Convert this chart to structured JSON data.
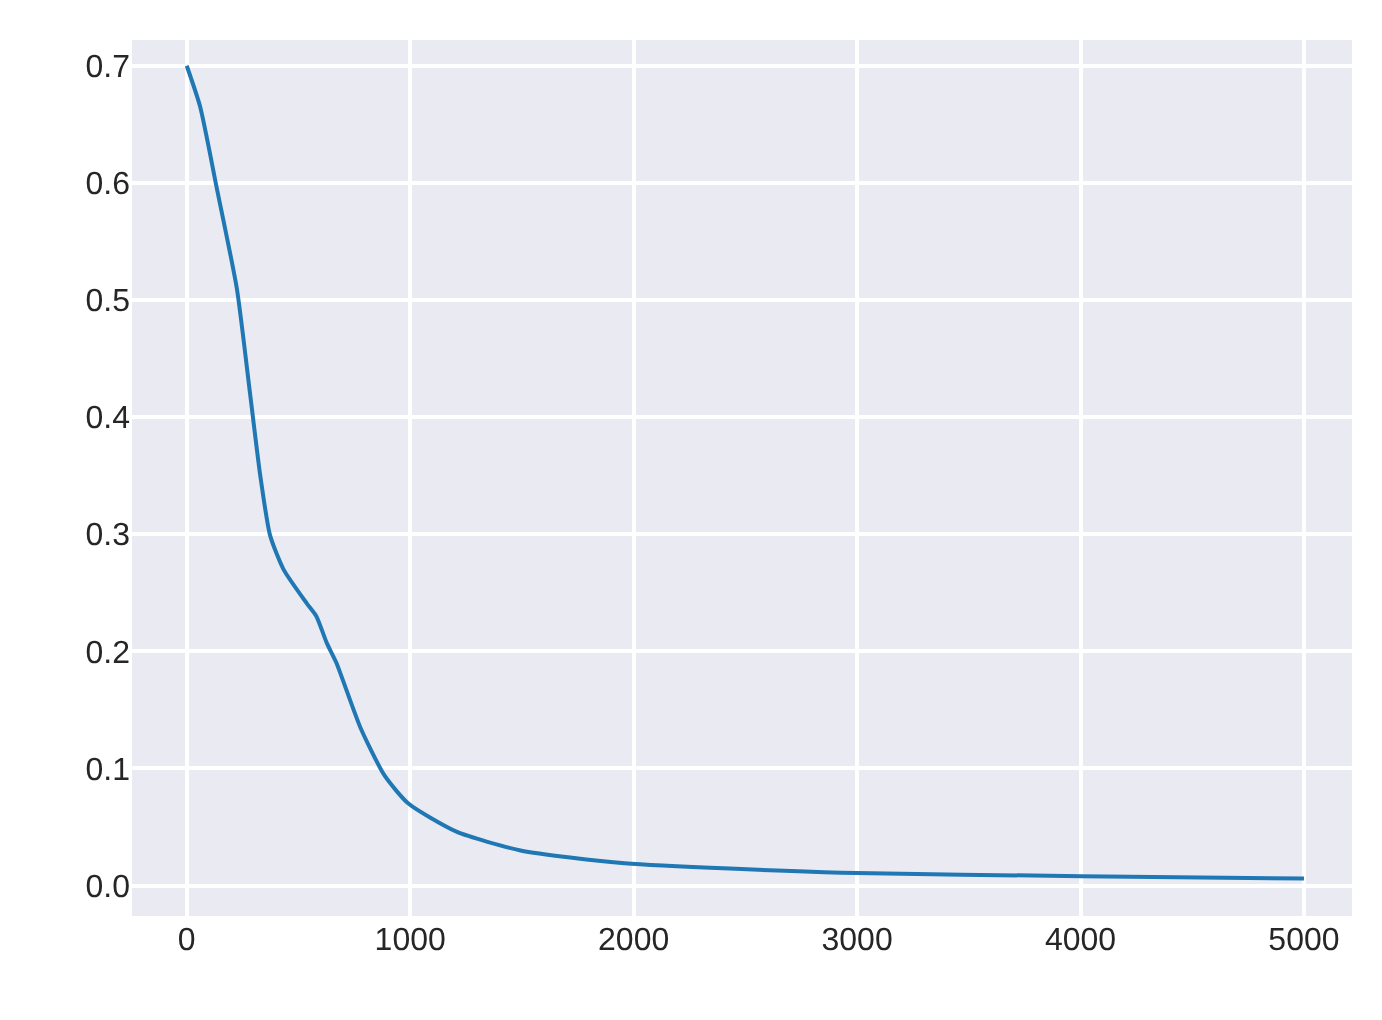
{
  "chart_data": {
    "type": "line",
    "x": [
      0,
      60,
      134,
      224,
      284,
      329,
      373,
      433,
      537,
      580,
      627,
      670,
      777,
      885,
      992,
      1207,
      1494,
      1960,
      2930,
      4006,
      5000
    ],
    "series": [
      {
        "color": "#1f77b4",
        "values": [
          0.7,
          0.665,
          0.596,
          0.51,
          0.419,
          0.35,
          0.299,
          0.27,
          0.241,
          0.23,
          0.207,
          0.19,
          0.135,
          0.094,
          0.07,
          0.046,
          0.03,
          0.019,
          0.011,
          0.008,
          0.006
        ]
      }
    ],
    "xlim": [
      -245,
      5215
    ],
    "ylim": [
      -0.026,
      0.722
    ],
    "xticks": [
      0,
      1000,
      2000,
      3000,
      4000,
      5000
    ],
    "yticks": [
      {
        "value": 0,
        "label": "0.0"
      },
      0.1,
      0.2,
      0.3,
      0.4,
      0.5,
      0.6,
      0.7
    ],
    "grid": true,
    "marker": "none",
    "line_style": "solid"
  }
}
